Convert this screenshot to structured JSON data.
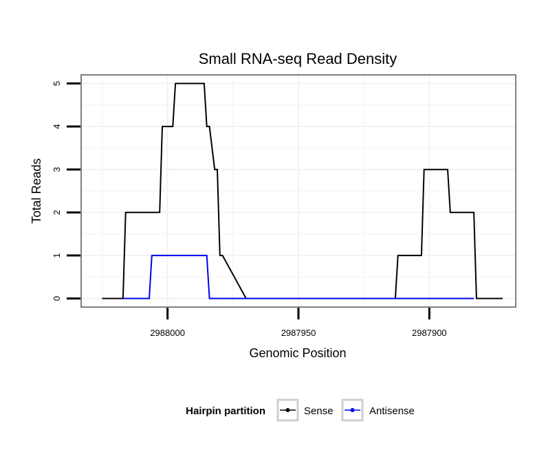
{
  "chart_data": {
    "type": "line",
    "title": "Small RNA-seq Read Density",
    "xlabel": "Genomic Position",
    "ylabel": "Total Reads",
    "x_reversed": true,
    "xlim": [
      2988033,
      2987867
    ],
    "ylim": [
      -0.2,
      5.2
    ],
    "x_ticks": [
      2988000,
      2987950,
      2987900
    ],
    "x_tick_labels": [
      "2988000",
      "2987950",
      "2987900"
    ],
    "y_ticks": [
      0,
      1,
      2,
      3,
      4,
      5
    ],
    "y_tick_labels": [
      "0",
      "1",
      "2",
      "3",
      "4",
      "5"
    ],
    "grid": true,
    "legend": {
      "title": "Hairpin partition",
      "position": "bottom"
    },
    "series": [
      {
        "name": "Sense",
        "color": "#000000",
        "x": [
          2988025,
          2988017,
          2988015,
          2988013,
          2988017,
          2988016,
          2988015,
          2988014,
          2988003,
          2988002,
          2987998,
          2987997,
          2987994,
          2987993,
          2987986,
          2987985,
          2987985,
          2987984,
          2987982,
          2987981,
          2987980,
          2987979,
          2987970,
          2987968,
          2987950,
          2987930,
          2987913,
          2987912,
          2987903,
          2987902,
          2987893,
          2987892,
          2987883,
          2987882,
          2987872
        ],
        "y": [
          0,
          0,
          0,
          0,
          0,
          2,
          2,
          2,
          2,
          4,
          4,
          5,
          5,
          5,
          5,
          4,
          4,
          4,
          3,
          3,
          1,
          1,
          0,
          0,
          0,
          0,
          0,
          1,
          1,
          3,
          3,
          2,
          2,
          0,
          0
        ]
      },
      {
        "name": "Antisense",
        "color": "#0000ee",
        "x": [
          2988017,
          2988007,
          2988006,
          2987986,
          2987985,
          2987984,
          2987883
        ],
        "y": [
          0,
          0,
          1,
          1,
          1,
          0,
          0
        ]
      }
    ]
  }
}
